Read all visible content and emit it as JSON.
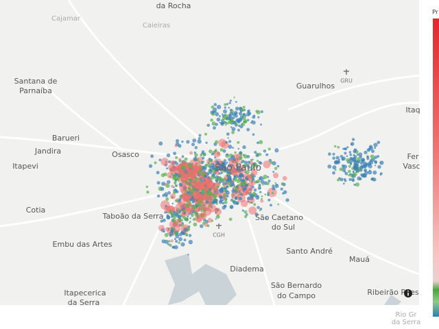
{
  "map": {
    "labels": [
      "Cajamar",
      "da Rocha",
      "Caieiras",
      "Santana de",
      "Parnaíba",
      "Guarulhos",
      "Itaq",
      "Barueri",
      "Jandira",
      "Osasco",
      "Itapevi",
      "São Paulo",
      "Fer",
      "Vasc",
      "Cotia",
      "Taboão da Serra",
      "São Caetano",
      "do Sul",
      "Embu das Artes",
      "Santo André",
      "Mauá",
      "Diadema",
      "Itapecerica",
      "da Serra",
      "São Bernardo",
      "do Campo",
      "Ribeirão Pires",
      "Rio Gr",
      "da Serra"
    ],
    "airports": [
      "GRU",
      "CGH"
    ],
    "colorbar": {
      "title": "Pr"
    }
  }
}
